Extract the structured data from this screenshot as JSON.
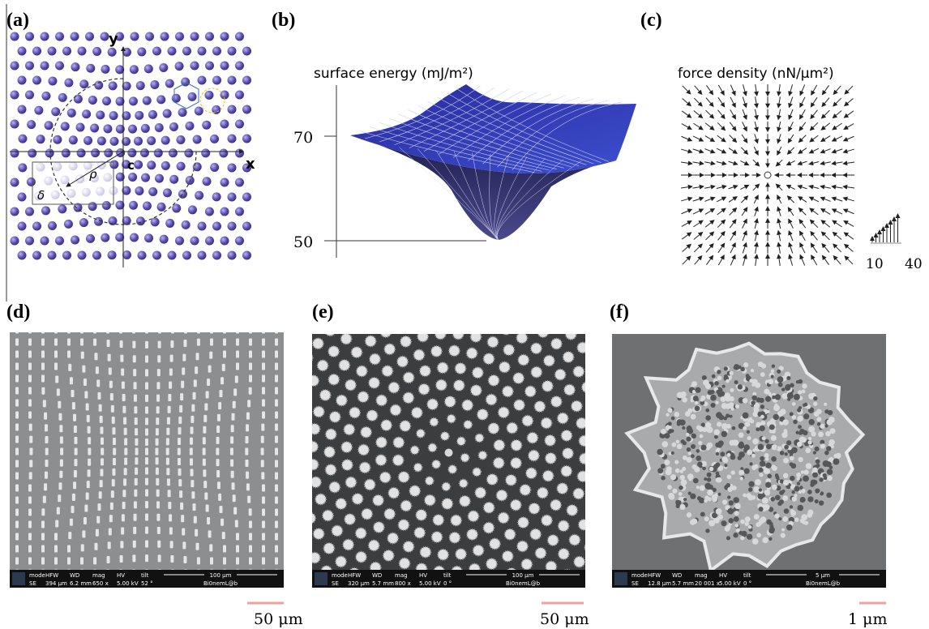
{
  "panels": [
    {
      "label": "(a)",
      "y_axis": "y",
      "x_axis": "x",
      "center": "c",
      "rho": "ρ",
      "delta": "δ"
    },
    {
      "label": "(b)",
      "title": "surface energy (mJ/m²)",
      "ticks": [
        "70",
        "50"
      ]
    },
    {
      "label": "(c)",
      "title": "force density (nN/μm²)",
      "scale_labels": [
        "10",
        "40"
      ]
    },
    {
      "label": "(d)",
      "info_headers": [
        "mode",
        "HFW",
        "WD",
        "mag",
        "HV",
        "tilt"
      ],
      "info_values": [
        "SE",
        "394 μm",
        "6.2 mm",
        "650 x",
        "5.00 kV",
        "52 °"
      ],
      "info_scale": "100 μm",
      "info_lab": "Bi0nemL@b",
      "scale_bar": "50 μm"
    },
    {
      "label": "(e)",
      "info_headers": [
        "mode",
        "HFW",
        "WD",
        "mag",
        "HV",
        "tilt"
      ],
      "info_values": [
        "SE",
        "320 μm",
        "5.7 mm",
        "800 x",
        "5.00 kV",
        "0 °"
      ],
      "info_scale": "100 μm",
      "info_lab": "Bi0nemL@b",
      "scale_bar": "50 μm"
    },
    {
      "label": "(f)",
      "info_headers": [
        "mode",
        "HFW",
        "WD",
        "mag",
        "HV",
        "tilt"
      ],
      "info_values": [
        "SE",
        "12.8 μm",
        "5.7 mm",
        "20 001 x",
        "5.00 kV",
        "0 °"
      ],
      "info_scale": "5 μm",
      "info_lab": "Bi0nemL@b",
      "scale_bar": "1 μm"
    }
  ]
}
